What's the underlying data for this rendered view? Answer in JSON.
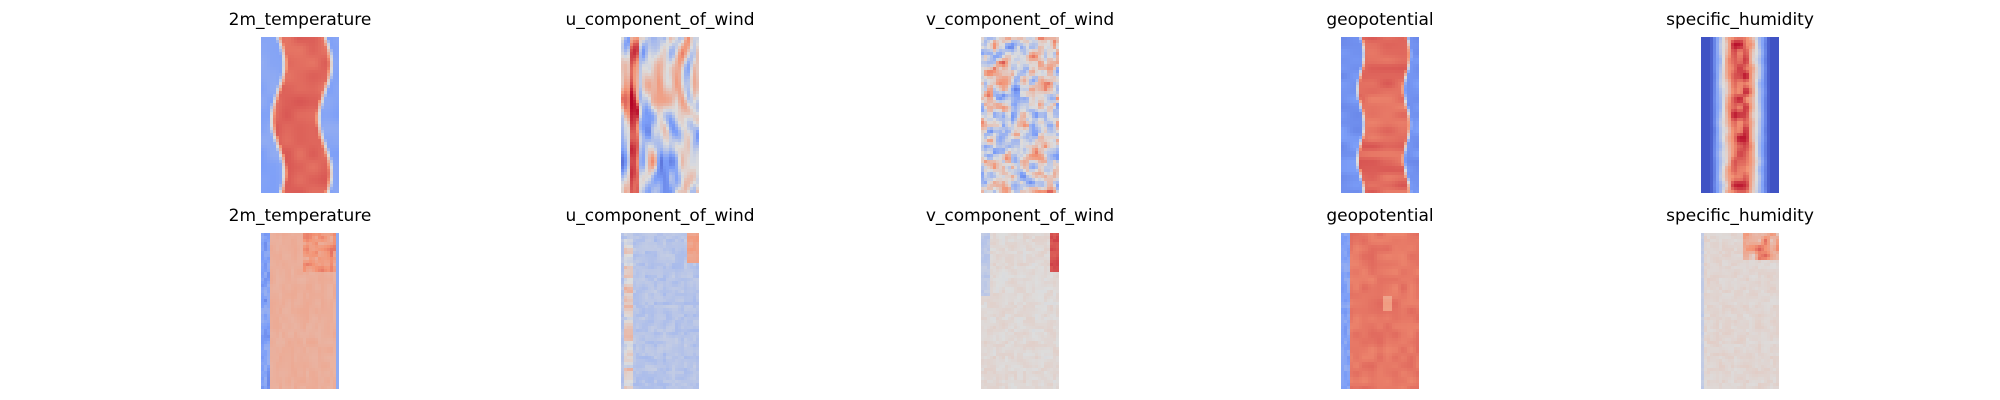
{
  "figure": {
    "rows": [
      {
        "panels": [
          {
            "title": "2m_temperature",
            "pattern": "warm_band"
          },
          {
            "title": "u_component_of_wind",
            "pattern": "streaks"
          },
          {
            "title": "v_component_of_wind",
            "pattern": "eddies"
          },
          {
            "title": "geopotential",
            "pattern": "warm_band_strong"
          },
          {
            "title": "specific_humidity",
            "pattern": "humidity_column"
          }
        ]
      },
      {
        "panels": [
          {
            "title": "2m_temperature",
            "pattern": "pred_temperature"
          },
          {
            "title": "u_component_of_wind",
            "pattern": "pred_wind_u"
          },
          {
            "title": "v_component_of_wind",
            "pattern": "pred_wind_v"
          },
          {
            "title": "geopotential",
            "pattern": "pred_geopotential"
          },
          {
            "title": "specific_humidity",
            "pattern": "pred_humidity"
          }
        ]
      }
    ]
  },
  "chart_data": {
    "type": "heatmap",
    "colormap": "coolwarm",
    "colors": {
      "low": "#3b4cc0",
      "mid": "#dddddd",
      "high": "#b40426"
    },
    "axes": "off",
    "grid": false,
    "panels": [
      "2m_temperature",
      "u_component_of_wind",
      "v_component_of_wind",
      "geopotential",
      "specific_humidity",
      "2m_temperature",
      "u_component_of_wind",
      "v_component_of_wind",
      "geopotential",
      "specific_humidity"
    ]
  }
}
